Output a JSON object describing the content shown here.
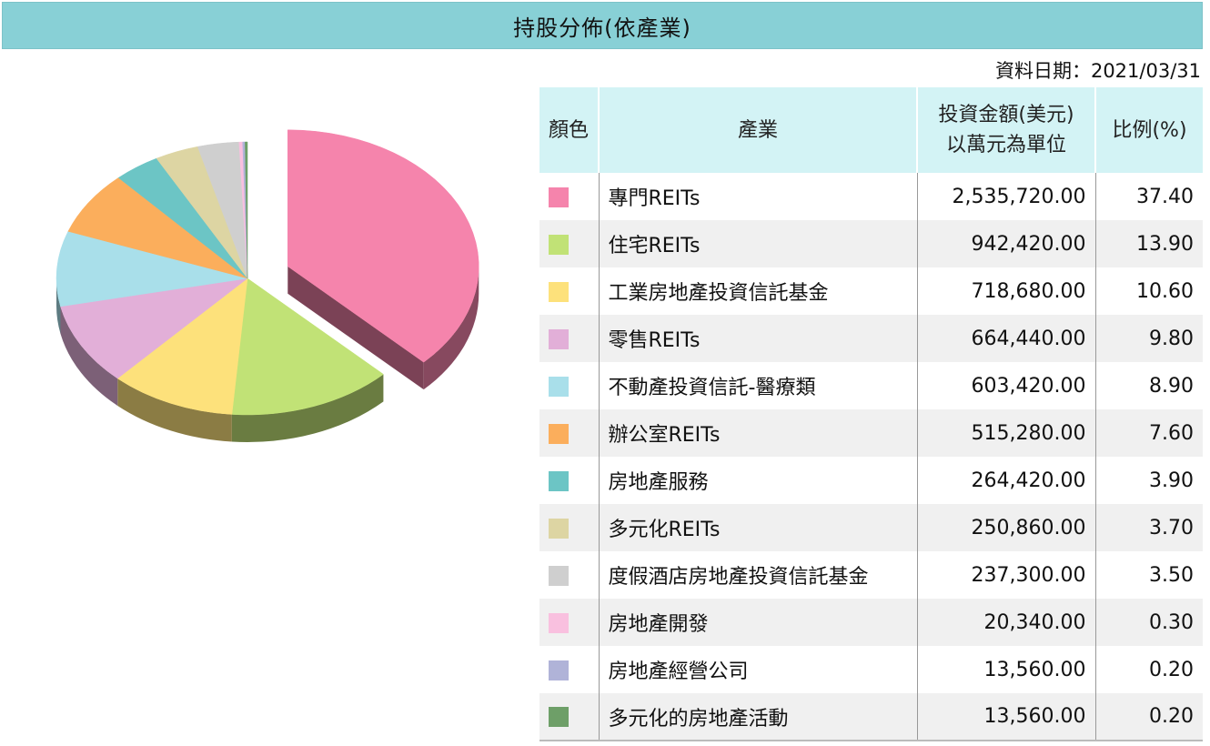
{
  "header": {
    "title": "持股分佈(依產業)"
  },
  "as_of": {
    "text": "資料日期：2021/03/31"
  },
  "table": {
    "columns": [
      "顏色",
      "產業",
      "投資金額(美元)\n以萬元為單位",
      "比例(%)"
    ],
    "column_amount_line1": "投資金額(美元)",
    "column_amount_line2": "以萬元為單位",
    "rows": [
      {
        "industry": "專門REITs",
        "amount": "2,535,720.00",
        "pct": "37.40",
        "color": "#f584ac"
      },
      {
        "industry": "住宅REITs",
        "amount": "942,420.00",
        "pct": "13.90",
        "color": "#c1e276"
      },
      {
        "industry": "工業房地產投資信託基金",
        "amount": "718,680.00",
        "pct": "10.60",
        "color": "#fde17b"
      },
      {
        "industry": "零售REITs",
        "amount": "664,440.00",
        "pct": "9.80",
        "color": "#e2afd8"
      },
      {
        "industry": "不動產投資信託-醫療類",
        "amount": "603,420.00",
        "pct": "8.90",
        "color": "#a9dfea"
      },
      {
        "industry": "辦公室REITs",
        "amount": "515,280.00",
        "pct": "7.60",
        "color": "#fbae5c"
      },
      {
        "industry": "房地產服務",
        "amount": "264,420.00",
        "pct": "3.90",
        "color": "#6cc5c5"
      },
      {
        "industry": "多元化REITs",
        "amount": "250,860.00",
        "pct": "3.70",
        "color": "#ddd5a3"
      },
      {
        "industry": "度假酒店房地產投資信託基金",
        "amount": "237,300.00",
        "pct": "3.50",
        "color": "#cfcfcf"
      },
      {
        "industry": "房地產開發",
        "amount": "20,340.00",
        "pct": "0.30",
        "color": "#f9c0df"
      },
      {
        "industry": "房地產經營公司",
        "amount": "13,560.00",
        "pct": "0.20",
        "color": "#b0b3d8"
      },
      {
        "industry": "多元化的房地產活動",
        "amount": "13,560.00",
        "pct": "0.20",
        "color": "#6e9f68"
      }
    ]
  },
  "chart_data": {
    "type": "pie",
    "style": "3d-exploded-first-slice",
    "categories": [
      "專門REITs",
      "住宅REITs",
      "工業房地產投資信託基金",
      "零售REITs",
      "不動產投資信託-醫療類",
      "辦公室REITs",
      "房地產服務",
      "多元化REITs",
      "度假酒店房地產投資信託基金",
      "房地產開發",
      "房地產經營公司",
      "多元化的房地產活動"
    ],
    "values": [
      37.4,
      13.9,
      10.6,
      9.8,
      8.9,
      7.6,
      3.9,
      3.7,
      3.5,
      0.3,
      0.2,
      0.2
    ],
    "colors": [
      "#f584ac",
      "#c1e276",
      "#fde17b",
      "#e2afd8",
      "#a9dfea",
      "#fbae5c",
      "#6cc5c5",
      "#ddd5a3",
      "#cfcfcf",
      "#f9c0df",
      "#b0b3d8",
      "#6e9f68"
    ],
    "title": "",
    "legend": "table-right"
  }
}
